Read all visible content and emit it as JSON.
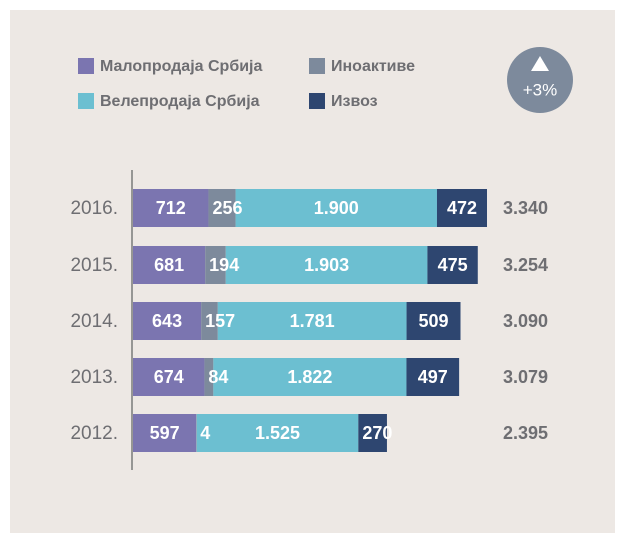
{
  "chart_data": {
    "type": "stacked-bar-horizontal",
    "annotation": "+3%",
    "categories": [
      "2016.",
      "2015.",
      "2014.",
      "2013.",
      "2012."
    ],
    "series": [
      {
        "name": "Малопродаја Србија",
        "color": "#7b75b0",
        "values": [
          712,
          681,
          643,
          674,
          597
        ]
      },
      {
        "name": "Иноактиве",
        "color": "#7d8a9c",
        "values": [
          256,
          194,
          157,
          84,
          4
        ]
      },
      {
        "name": "Велепродаја Србија",
        "color": "#6cbfd1",
        "values": [
          1900,
          1903,
          1781,
          1822,
          1525
        ],
        "value_labels": [
          "1.900",
          "1.903",
          "1.781",
          "1.822",
          "1.525"
        ]
      },
      {
        "name": "Извоз",
        "color": "#2e4670",
        "values": [
          472,
          475,
          509,
          497,
          270
        ]
      }
    ],
    "totals": {
      "values": [
        3340,
        3254,
        3090,
        3079,
        2395
      ],
      "value_labels": [
        "3.340",
        "3.254",
        "3.090",
        "3.079",
        "2.395"
      ]
    }
  }
}
